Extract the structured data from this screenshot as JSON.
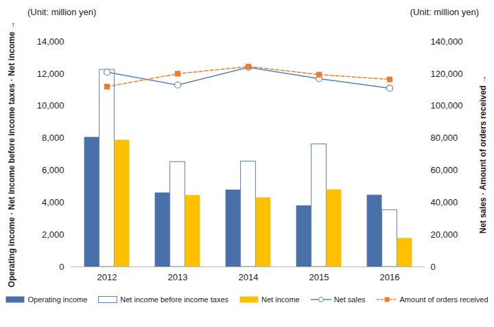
{
  "chart_data": {
    "type": "bar",
    "annotations": [
      "(Unit: million yen)",
      "(Unit: million yen)"
    ],
    "y_label": "Operating income · Net income before income taxes · Net income",
    "y2_label": "Net sales · Amount of orders received",
    "categories": [
      "2012",
      "2013",
      "2014",
      "2015",
      "2016"
    ],
    "ylim": [
      0,
      14000
    ],
    "yticks": [
      0,
      {
        "value": 2000,
        "label": "2,000"
      },
      {
        "value": 4000,
        "label": "4,000"
      },
      {
        "value": 6000,
        "label": "6,000"
      },
      {
        "value": 8000,
        "label": "8,000"
      },
      {
        "value": 10000,
        "label": "10,000"
      },
      {
        "value": 12000,
        "label": "12,000"
      },
      {
        "value": 14000,
        "label": "14,000"
      }
    ],
    "y2lim": [
      0,
      140000
    ],
    "y2ticks": [
      0,
      {
        "value": 20000,
        "label": "20,000"
      },
      {
        "value": 40000,
        "label": "40,000"
      },
      {
        "value": 60000,
        "label": "60,000"
      },
      {
        "value": 80000,
        "label": "80,000"
      },
      {
        "value": 100000,
        "label": "100,000"
      },
      {
        "value": 120000,
        "label": "120,000"
      },
      {
        "value": 140000,
        "label": "140,000"
      }
    ],
    "grid": false,
    "legend": "bottom",
    "series": [
      {
        "name": "Operating income",
        "type": "bar",
        "color": "#4a70aa",
        "values": [
          8050,
          4600,
          4780,
          3800,
          4460
        ]
      },
      {
        "name": "Net income before income taxes",
        "type": "bar",
        "color": "#ffffff",
        "values": [
          12250,
          6520,
          6550,
          7620,
          3530
        ]
      },
      {
        "name": "Net income",
        "type": "bar",
        "color": "#ffc000",
        "values": [
          7880,
          4450,
          4300,
          4800,
          1780
        ]
      },
      {
        "name": "Net sales",
        "type": "line",
        "axis": "y2",
        "color": "#5b7fb8",
        "marker": "circle",
        "line_style": "solid",
        "values": [
          121000,
          113000,
          124000,
          117000,
          111000
        ]
      },
      {
        "name": "Amount of orders received",
        "type": "line",
        "axis": "y2",
        "color": "#ed7d31",
        "marker": "square",
        "line_style": "dashed",
        "values": [
          112000,
          120000,
          124500,
          119500,
          116500
        ]
      }
    ]
  }
}
